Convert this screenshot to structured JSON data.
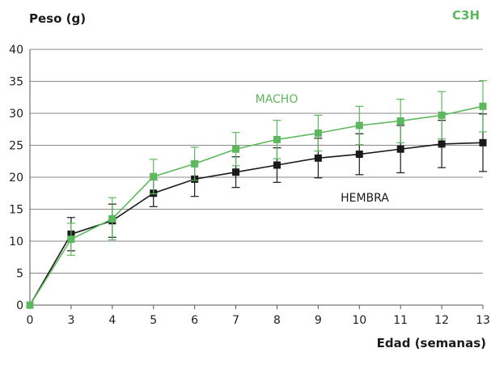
{
  "chart_data": {
    "type": "line",
    "badge": "C3H",
    "title": "",
    "ylabel": "Peso (g)",
    "xlabel": "Edad (semanas)",
    "x_categories": [
      "0",
      "3",
      "4",
      "5",
      "6",
      "7",
      "8",
      "9",
      "10",
      "11",
      "12",
      "13"
    ],
    "ylim": [
      0,
      40
    ],
    "yticks": [
      0,
      5,
      10,
      15,
      20,
      25,
      30,
      35,
      40
    ],
    "grid": true,
    "series": [
      {
        "name": "MACHO",
        "color": "#5cb85c",
        "values": [
          0,
          10.3,
          13.5,
          20.1,
          22.1,
          24.4,
          25.9,
          26.9,
          28.1,
          28.8,
          29.7,
          31.1
        ],
        "error": [
          0,
          2.5,
          3.3,
          2.7,
          2.6,
          2.6,
          3.0,
          2.8,
          3.0,
          3.4,
          3.7,
          4.0
        ]
      },
      {
        "name": "HEMBRA",
        "color": "#1a1a1a",
        "values": [
          0,
          11.1,
          13.2,
          17.5,
          19.7,
          20.8,
          21.9,
          23.0,
          23.6,
          24.4,
          25.2,
          25.4
        ],
        "error": [
          0,
          2.6,
          2.6,
          2.1,
          2.7,
          2.4,
          2.7,
          3.1,
          3.2,
          3.7,
          3.7,
          4.5
        ]
      }
    ]
  }
}
